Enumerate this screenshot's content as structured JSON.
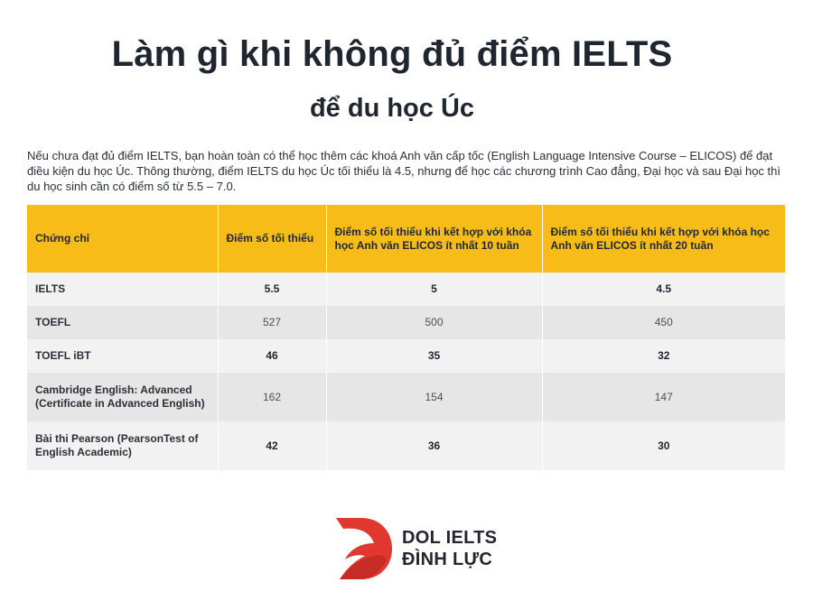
{
  "header": {
    "title": "Làm gì khi không đủ điểm IELTS",
    "subtitle": "để du học Úc"
  },
  "intro": "Nếu chưa đạt đủ điểm IELTS, bạn hoàn toàn có thể học thêm các khoá Anh văn cấp tốc (English Language Intensive Course – ELICOS) để đạt điều kiện du học Úc. Thông thường, điểm IELTS du học Úc tối thiểu là 4.5, nhưng để học các chương trình Cao đẳng, Đại học và sau Đại học thì du học sinh cần có điểm số từ 5.5 – 7.0.",
  "table": {
    "headers": [
      "Chứng chỉ",
      "Điểm số tối thiểu",
      "Điểm số tối thiểu khi kết hợp với khóa học Anh văn ELICOS ít nhất 10 tuần",
      "Điểm số tối thiểu khi kết hợp với khóa học Anh văn ELICOS ít nhất 20 tuần"
    ],
    "rows": [
      {
        "cert": "IELTS",
        "min": "5.5",
        "w10": "5",
        "w20": "4.5"
      },
      {
        "cert": "TOEFL",
        "min": "527",
        "w10": "500",
        "w20": "450"
      },
      {
        "cert": "TOEFL iBT",
        "min": "46",
        "w10": "35",
        "w20": "32"
      },
      {
        "cert": "Cambridge English: Advanced (Certificate in Advanced English)",
        "min": "162",
        "w10": "154",
        "w20": "147"
      },
      {
        "cert": "Bài thi Pearson (PearsonTest of English Academic)",
        "min": "42",
        "w10": "36",
        "w20": "30"
      }
    ]
  },
  "logo": {
    "line1": "DOL IELTS",
    "line2": "ĐÌNH LỰC",
    "icon": "dol-logo-icon",
    "color": "#e0372f"
  },
  "colors": {
    "header_bg": "#f7bc17",
    "row_light": "#f2f2f2",
    "row_dark": "#e6e6e6"
  }
}
